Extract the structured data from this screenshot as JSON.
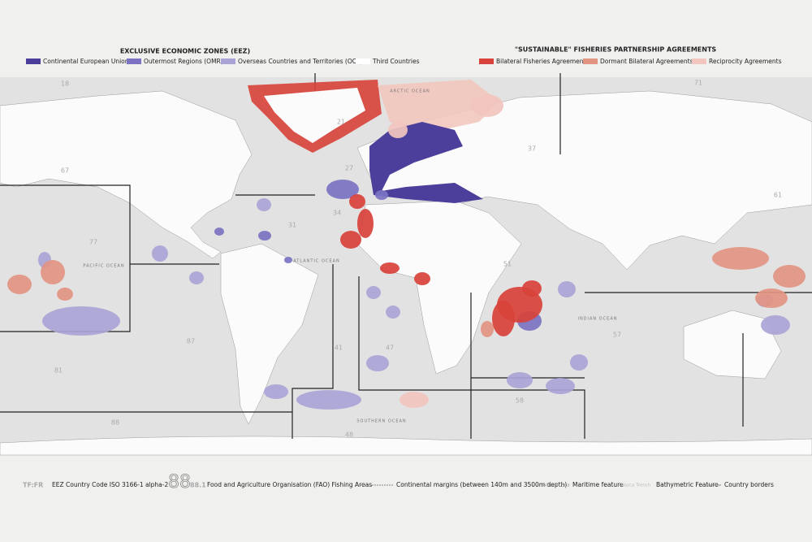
{
  "legend": {
    "eez": {
      "title": "EXCLUSIVE ECONOMIC ZONES (EEZ)",
      "items": [
        {
          "label": "Continental European Union",
          "color": "#4b3f9b"
        },
        {
          "label": "Outermost Regions (OMR)",
          "color": "#7b73c2"
        },
        {
          "label": "Overseas Countries and Territories (OCT)",
          "color": "#aaa4d6"
        },
        {
          "label": "Third Countries",
          "color": "#ffffff"
        }
      ]
    },
    "sfpa": {
      "title": "\"SUSTAINABLE\" FISHERIES PARTNERSHIP AGREEMENTS",
      "items": [
        {
          "label": "Bilateral Fisheries Agreements",
          "color": "#d8423a"
        },
        {
          "label": "Dormant Bilateral Agreements",
          "color": "#e29483"
        },
        {
          "label": "Reciprocity Agreements",
          "color": "#f2c6be"
        }
      ]
    }
  },
  "oceans": [
    "ARCTIC OCEAN",
    "PACIFIC OCEAN",
    "ATLANTIC OCEAN",
    "INDIAN OCEAN",
    "SOUTHERN OCEAN"
  ],
  "fao_areas": [
    "18",
    "21",
    "67",
    "27",
    "31",
    "34",
    "77",
    "37",
    "51",
    "57",
    "61",
    "71",
    "87",
    "41",
    "47",
    "81",
    "58",
    "48",
    "88"
  ],
  "footer": {
    "code_sample": "TF:FR",
    "code_text": "EEZ Country Code ISO 3166-1 alpha-2",
    "fao_big": "88",
    "fao_small": "88.1",
    "fao_text": "Food and Agriculture Organisation (FAO) Fishing Areas",
    "margins_text": "Continental margins (between 140m and 3500m depth)",
    "maritime_sample": "Alboran Sea",
    "maritime_text": "Maritime feature",
    "bathy_sample": "Nazca Trench",
    "bathy_text": "Bathymetric Feature",
    "borders_text": "Country borders"
  }
}
